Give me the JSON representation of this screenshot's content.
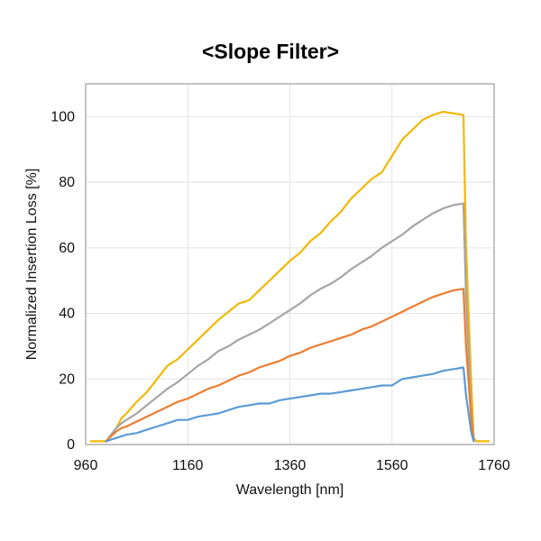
{
  "chart_data": {
    "type": "line",
    "title": "<Slope Filter>",
    "xlabel": "Wavelength [nm]",
    "ylabel": "Normalized Insertion Loss [%]",
    "xlim": [
      960,
      1760
    ],
    "ylim": [
      0,
      110
    ],
    "xticks": [
      960,
      1160,
      1360,
      1560,
      1760
    ],
    "yticks": [
      0,
      20,
      40,
      60,
      80,
      100
    ],
    "grid": true,
    "legend": "none",
    "series": [
      {
        "color": "#f2b705",
        "x": [
          970,
          990,
          1000,
          1010,
          1020,
          1030,
          1040,
          1060,
          1080,
          1100,
          1120,
          1140,
          1160,
          1180,
          1200,
          1220,
          1240,
          1260,
          1280,
          1300,
          1320,
          1340,
          1360,
          1380,
          1400,
          1420,
          1440,
          1460,
          1480,
          1500,
          1520,
          1540,
          1560,
          1580,
          1600,
          1620,
          1640,
          1660,
          1680,
          1700,
          1705,
          1715,
          1720,
          1725,
          1730,
          1740,
          1750
        ],
        "y": [
          1,
          1,
          1,
          3,
          5,
          8,
          9.5,
          13,
          16,
          20,
          24,
          26,
          29,
          32,
          35,
          38,
          40.5,
          43,
          44,
          47,
          50,
          53,
          56,
          58.5,
          62,
          64.5,
          68,
          71,
          75,
          78,
          81,
          83,
          88,
          93,
          96,
          99,
          100.5,
          101.5,
          101,
          100.5,
          60,
          20,
          2,
          1,
          1,
          1,
          1
        ]
      },
      {
        "color": "#a5a5a5",
        "x": [
          1000,
          1010,
          1020,
          1030,
          1040,
          1060,
          1080,
          1100,
          1120,
          1140,
          1160,
          1180,
          1200,
          1220,
          1240,
          1260,
          1280,
          1300,
          1320,
          1340,
          1360,
          1380,
          1400,
          1420,
          1440,
          1460,
          1480,
          1500,
          1520,
          1540,
          1560,
          1580,
          1600,
          1620,
          1640,
          1660,
          1680,
          1700,
          1705,
          1715,
          1720
        ],
        "y": [
          1,
          3,
          5,
          6.5,
          7.5,
          9.5,
          12,
          14.5,
          17,
          19,
          21.5,
          24,
          26,
          28.5,
          30,
          32,
          33.5,
          35,
          37,
          39,
          41,
          43,
          45.5,
          47.5,
          49,
          51,
          53.5,
          55.5,
          57.5,
          60,
          62,
          64,
          66.5,
          68.5,
          70.5,
          72,
          73,
          73.5,
          45,
          10,
          1.5
        ]
      },
      {
        "color": "#ed7d31",
        "x": [
          1000,
          1010,
          1020,
          1030,
          1040,
          1060,
          1080,
          1100,
          1120,
          1140,
          1160,
          1180,
          1200,
          1220,
          1240,
          1260,
          1280,
          1300,
          1320,
          1340,
          1360,
          1380,
          1400,
          1420,
          1440,
          1460,
          1480,
          1500,
          1520,
          1540,
          1560,
          1580,
          1600,
          1620,
          1640,
          1660,
          1680,
          1700,
          1705,
          1715,
          1720
        ],
        "y": [
          1,
          2.5,
          4,
          5,
          5.5,
          7,
          8.5,
          10,
          11.5,
          13,
          14,
          15.5,
          17,
          18,
          19.5,
          21,
          22,
          23.5,
          24.5,
          25.5,
          27,
          28,
          29.5,
          30.5,
          31.5,
          32.5,
          33.5,
          35,
          36,
          37.5,
          39,
          40.5,
          42,
          43.5,
          45,
          46,
          47,
          47.5,
          30,
          8,
          1.5
        ]
      },
      {
        "color": "#5b9bd5",
        "x": [
          1000,
          1010,
          1020,
          1030,
          1040,
          1060,
          1080,
          1100,
          1120,
          1140,
          1160,
          1180,
          1200,
          1220,
          1240,
          1260,
          1280,
          1300,
          1320,
          1340,
          1360,
          1380,
          1400,
          1420,
          1440,
          1460,
          1480,
          1500,
          1520,
          1540,
          1560,
          1580,
          1600,
          1620,
          1640,
          1660,
          1680,
          1700,
          1705,
          1715,
          1720
        ],
        "y": [
          1,
          1.5,
          2,
          2.5,
          3,
          3.5,
          4.5,
          5.5,
          6.5,
          7.5,
          7.5,
          8.5,
          9,
          9.5,
          10.5,
          11.5,
          12,
          12.5,
          12.5,
          13.5,
          14,
          14.5,
          15,
          15.5,
          15.5,
          16,
          16.5,
          17,
          17.5,
          18,
          18,
          20,
          20.5,
          21,
          21.5,
          22.5,
          23,
          23.5,
          15,
          4,
          1
        ]
      }
    ]
  }
}
